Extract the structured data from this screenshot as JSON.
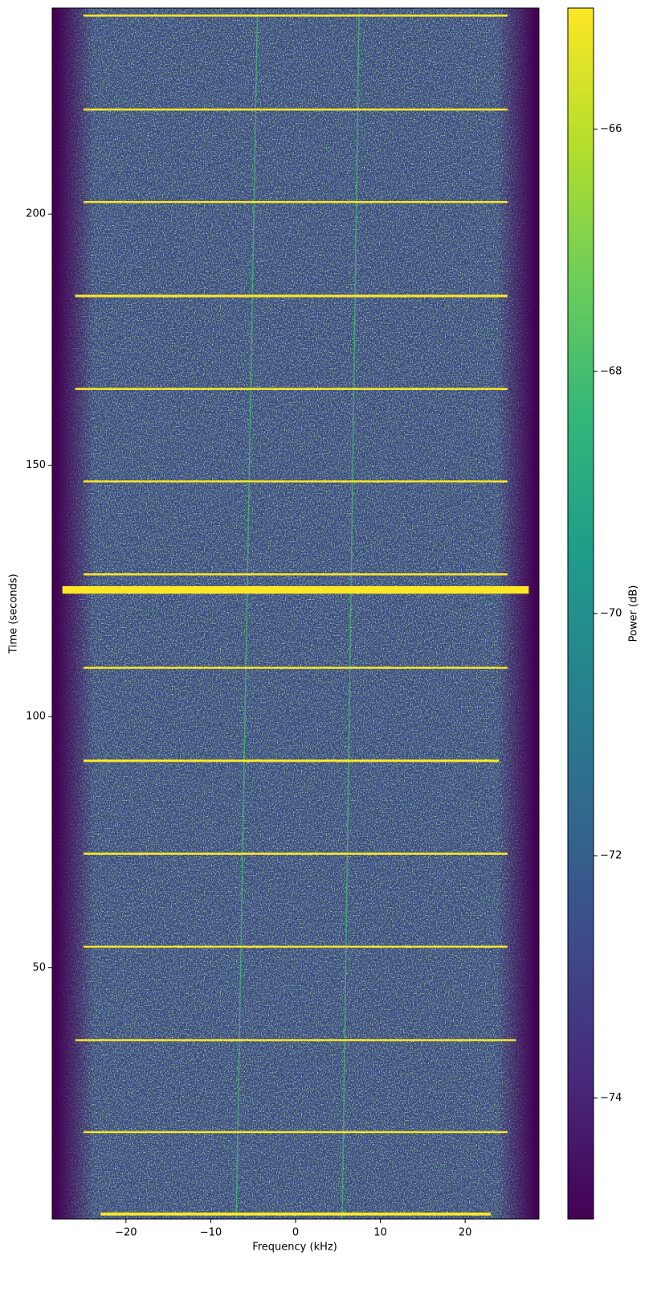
{
  "chart_data": {
    "type": "spectrogram",
    "xlabel": "Frequency (kHz)",
    "ylabel": "Time (seconds)",
    "colorbar_label": "Power (dB)",
    "xlim": [
      -28.7,
      28.7
    ],
    "ylim": [
      0,
      241
    ],
    "clim": [
      -75,
      -65
    ],
    "xticks": [
      {
        "value": -20,
        "label": "−20"
      },
      {
        "value": -10,
        "label": "−10"
      },
      0,
      10,
      20
    ],
    "yticks": [
      50,
      100,
      150,
      200
    ],
    "cticks": [
      {
        "value": -74,
        "label": "−74"
      },
      {
        "value": -72,
        "label": "−72"
      },
      {
        "value": -70,
        "label": "−70"
      },
      {
        "value": -68,
        "label": "−68"
      },
      {
        "value": -66,
        "label": "−66"
      }
    ],
    "colormap": [
      "#440154",
      "#482878",
      "#3e4989",
      "#31688e",
      "#26828e",
      "#1f9e89",
      "#35b779",
      "#6ece58",
      "#b5de2b",
      "#fde725"
    ],
    "noise_band": [
      -24,
      24
    ],
    "noise_power": -72,
    "bursts": [
      {
        "time": 239.5,
        "duration": 0.4,
        "power": -65,
        "freq": [
          -25,
          25
        ]
      },
      {
        "time": 220.8,
        "duration": 0.4,
        "power": -65,
        "freq": [
          -25,
          25
        ]
      },
      {
        "time": 202.4,
        "duration": 0.4,
        "power": -65,
        "freq": [
          -25,
          25
        ]
      },
      {
        "time": 183.7,
        "duration": 0.5,
        "power": -65,
        "freq": [
          -26,
          25
        ]
      },
      {
        "time": 165.2,
        "duration": 0.4,
        "power": -65,
        "freq": [
          -26,
          25
        ]
      },
      {
        "time": 146.8,
        "duration": 0.4,
        "power": -65,
        "freq": [
          -25,
          25
        ]
      },
      {
        "time": 128.3,
        "duration": 0.4,
        "power": -65,
        "freq": [
          -25,
          25
        ]
      },
      {
        "time": 125.2,
        "duration": 1.5,
        "power": -65,
        "freq": [
          -27.5,
          27.5
        ]
      },
      {
        "time": 109.7,
        "duration": 0.4,
        "power": -65,
        "freq": [
          -25,
          25
        ]
      },
      {
        "time": 91.2,
        "duration": 0.5,
        "power": -65,
        "freq": [
          -25,
          24
        ]
      },
      {
        "time": 72.7,
        "duration": 0.4,
        "power": -65,
        "freq": [
          -25,
          25
        ]
      },
      {
        "time": 54.2,
        "duration": 0.4,
        "power": -65,
        "freq": [
          -25,
          25
        ]
      },
      {
        "time": 35.6,
        "duration": 0.4,
        "power": -65,
        "freq": [
          -26,
          26
        ]
      },
      {
        "time": 17.3,
        "duration": 0.4,
        "power": -65,
        "freq": [
          -25,
          25
        ]
      },
      {
        "time": 1.0,
        "duration": 0.6,
        "power": -65,
        "freq": [
          -23,
          23
        ]
      }
    ],
    "tones": [
      {
        "freq": [
          -7,
          -4.5
        ],
        "time": [
          0,
          241
        ],
        "power": -68
      },
      {
        "freq": [
          5.5,
          7.5
        ],
        "time": [
          0,
          241
        ],
        "power": -68
      }
    ]
  }
}
